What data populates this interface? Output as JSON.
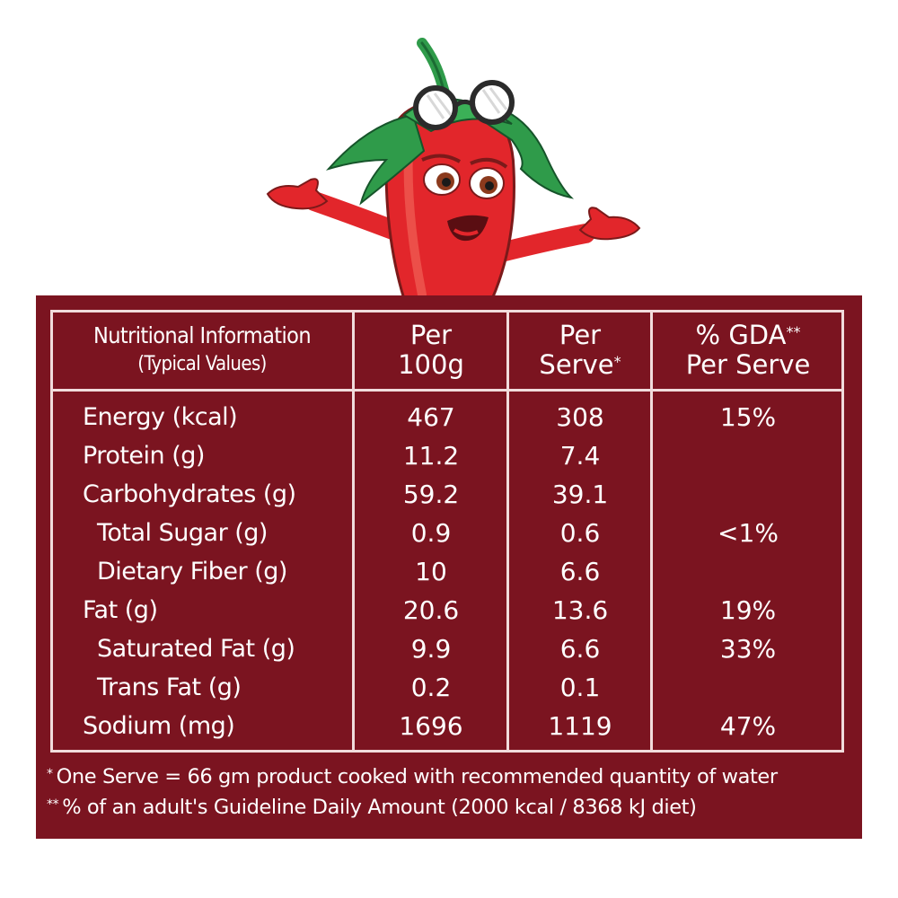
{
  "header": {
    "col0_line1": "Nutritional Information",
    "col0_line2": "(Typical Values)",
    "col1_line1": "Per",
    "col1_line2": "100g",
    "col2_line1": "Per",
    "col2_line2": "Serve",
    "col2_mark": "*",
    "col3_line1": "% GDA",
    "col3_mark": "**",
    "col3_line2": "Per Serve"
  },
  "rows": [
    {
      "label": "Energy (kcal)",
      "per100g": "467",
      "perServe": "308",
      "gda": "15%",
      "indent": false
    },
    {
      "label": "Protein (g)",
      "per100g": "11.2",
      "perServe": "7.4",
      "gda": "",
      "indent": false
    },
    {
      "label": "Carbohydrates (g)",
      "per100g": "59.2",
      "perServe": "39.1",
      "gda": "",
      "indent": false
    },
    {
      "label": "Total Sugar (g)",
      "per100g": "0.9",
      "perServe": "0.6",
      "gda": "<1%",
      "indent": true
    },
    {
      "label": "Dietary Fiber (g)",
      "per100g": "10",
      "perServe": "6.6",
      "gda": "",
      "indent": true
    },
    {
      "label": "Fat (g)",
      "per100g": "20.6",
      "perServe": "13.6",
      "gda": "19%",
      "indent": false
    },
    {
      "label": "Saturated Fat (g)",
      "per100g": "9.9",
      "perServe": "6.6",
      "gda": "33%",
      "indent": true
    },
    {
      "label": "Trans Fat (g)",
      "per100g": "0.2",
      "perServe": "0.1",
      "gda": "",
      "indent": true
    },
    {
      "label": "Sodium (mg)",
      "per100g": "1696",
      "perServe": "1119",
      "gda": "47%",
      "indent": false
    }
  ],
  "footnotes": {
    "note1_mark": "*",
    "note1": "One Serve = 66 gm product cooked with recommended quantity of water",
    "note2_mark": "**",
    "note2": "% of an adult's Guideline Daily Amount (2000 kcal / 8368 kJ diet)"
  },
  "colors": {
    "panel": "#7b1420",
    "rule": "#f1dcdc",
    "mascot_red": "#e2262b",
    "mascot_leaf": "#2f9b4a"
  },
  "icons": {
    "mascot": "chili-pepper-mascot-icon"
  }
}
